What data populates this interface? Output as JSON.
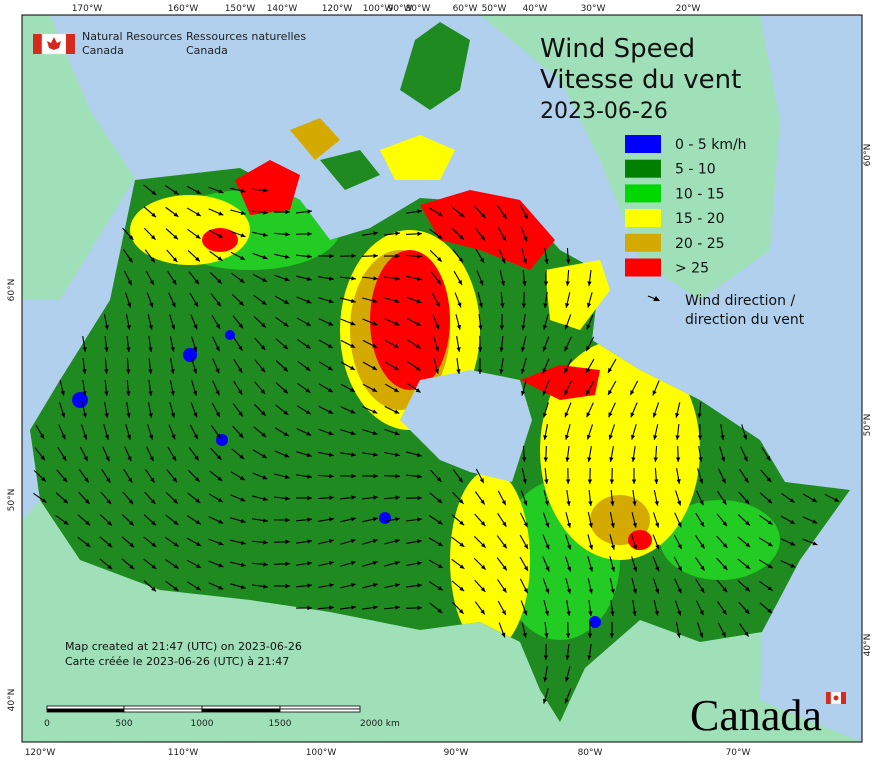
{
  "agency": {
    "en": [
      "Natural Resources",
      "Canada"
    ],
    "fr": [
      "Ressources naturelles",
      "Canada"
    ]
  },
  "title": {
    "en": "Wind Speed",
    "fr": "Vitesse du vent",
    "date": "2023-06-26"
  },
  "legend": {
    "items": [
      {
        "label": "0 - 5 km/h",
        "color": "#0000ff"
      },
      {
        "label": "5 - 10",
        "color": "#007f00"
      },
      {
        "label": "10 - 15",
        "color": "#00d800"
      },
      {
        "label": "15 - 20",
        "color": "#ffff00"
      },
      {
        "label": "20 - 25",
        "color": "#d4aa00"
      },
      {
        "label": "> 25",
        "color": "#ff0000"
      }
    ],
    "arrow_label": [
      "Wind direction /",
      "direction du vent"
    ]
  },
  "graticule": {
    "top": [
      "170°W",
      "160°W",
      "150°W",
      "140°W",
      "120°W",
      "100°W",
      "90°W",
      "80°W",
      "60°W",
      "50°W",
      "40°W",
      "30°W",
      "20°W"
    ],
    "bottom": [
      "120°W",
      "110°W",
      "100°W",
      "90°W",
      "80°W",
      "70°W"
    ],
    "left": [
      "60°N",
      "50°N",
      "40°N"
    ],
    "right": [
      "60°N",
      "50°N",
      "40°N"
    ]
  },
  "footer": {
    "created": [
      "Map created at 21:47 (UTC) on 2023-06-26",
      "Carte créée le 2023-06-26 (UTC) à 21:47"
    ]
  },
  "scale_bar": {
    "labels": [
      "0",
      "500",
      "1000",
      "1500",
      "2000 km"
    ]
  },
  "wordmark": "Canada"
}
